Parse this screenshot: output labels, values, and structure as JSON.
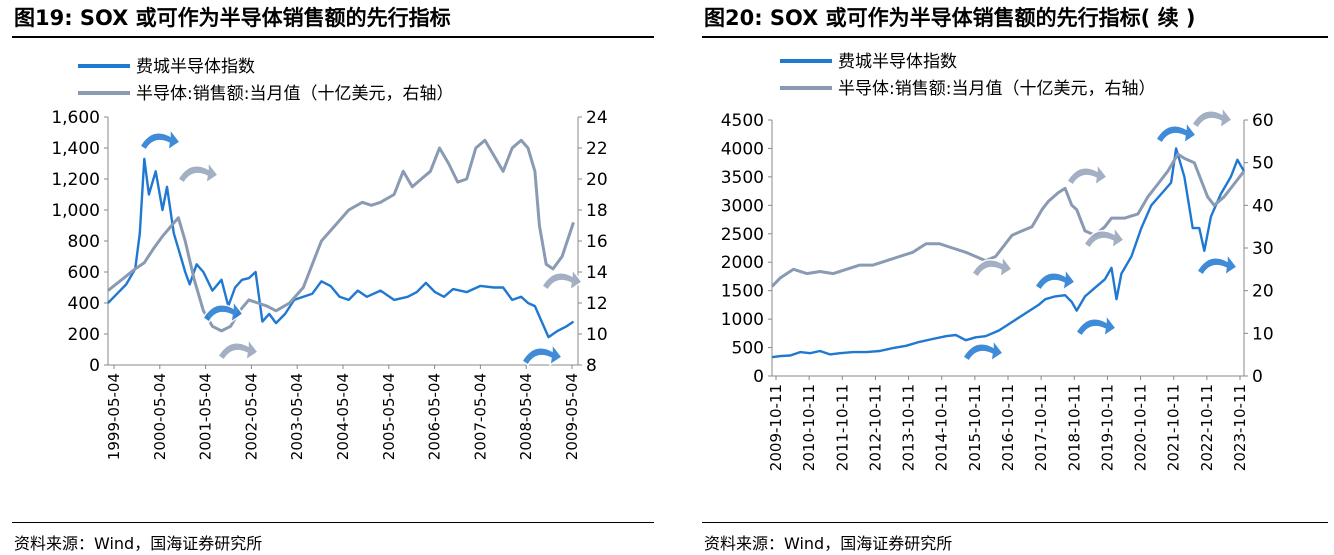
{
  "colors": {
    "sox": "#1f78d1",
    "sales": "#8a9ab3",
    "arrow_blue": "#2b7fd4",
    "arrow_grey": "#9aa7bd"
  },
  "panel1": {
    "title": "图19:  SOX 或可作为半导体销售额的先行指标",
    "source": "资料来源：Wind，国海证券研究所"
  },
  "panel2": {
    "title": "图20:  SOX 或可作为半导体销售额的先行指标( 续 )",
    "source": "资料来源：Wind，国海证券研究所"
  },
  "chart_data": [
    {
      "type": "line",
      "title": "图19:  SOX 或可作为半导体销售额的先行指标",
      "legend_position": "top-left",
      "grid": false,
      "x_tick_labels": [
        "1999-05-04",
        "2000-05-04",
        "2001-05-04",
        "2002-05-04",
        "2003-05-04",
        "2004-05-04",
        "2005-05-04",
        "2006-05-04",
        "2007-05-04",
        "2008-05-04",
        "2009-05-04"
      ],
      "x_range": [
        1999.3,
        2009.65
      ],
      "y_left": {
        "ticks": [
          "0",
          "200",
          "400",
          "600",
          "800",
          "1,000",
          "1,200",
          "1,400",
          "1,600"
        ],
        "range": [
          0,
          1600
        ]
      },
      "y_right": {
        "ticks": [
          "8",
          "10",
          "12",
          "14",
          "16",
          "18",
          "20",
          "22",
          "24"
        ],
        "range": [
          8,
          24
        ]
      },
      "series": [
        {
          "name": "费城半导体指数",
          "axis": "left",
          "x": [
            1999.3,
            1999.5,
            1999.7,
            1999.9,
            2000.0,
            2000.1,
            2000.2,
            2000.35,
            2000.5,
            2000.6,
            2000.75,
            2000.9,
            2001.0,
            2001.1,
            2001.25,
            2001.4,
            2001.6,
            2001.8,
            2001.95,
            2002.1,
            2002.25,
            2002.4,
            2002.55,
            2002.7,
            2002.85,
            2003.0,
            2003.2,
            2003.4,
            2003.6,
            2003.8,
            2004.0,
            2004.2,
            2004.4,
            2004.6,
            2004.8,
            2005.0,
            2005.3,
            2005.6,
            2005.9,
            2006.1,
            2006.3,
            2006.5,
            2006.7,
            2006.9,
            2007.2,
            2007.5,
            2007.8,
            2008.0,
            2008.2,
            2008.4,
            2008.55,
            2008.7,
            2008.85,
            2009.0,
            2009.2,
            2009.4,
            2009.55
          ],
          "values": [
            400,
            460,
            520,
            620,
            850,
            1330,
            1100,
            1250,
            1000,
            1150,
            850,
            700,
            600,
            520,
            650,
            600,
            480,
            550,
            380,
            500,
            550,
            560,
            600,
            280,
            330,
            270,
            330,
            420,
            440,
            460,
            540,
            510,
            440,
            420,
            480,
            440,
            480,
            420,
            440,
            470,
            530,
            470,
            440,
            490,
            470,
            510,
            500,
            500,
            420,
            440,
            400,
            380,
            280,
            180,
            220,
            250,
            280
          ]
        },
        {
          "name": "半导体:销售额:当月值（十亿美元，右轴）",
          "axis": "right",
          "x": [
            1999.3,
            1999.6,
            1999.9,
            2000.1,
            2000.3,
            2000.5,
            2000.7,
            2000.85,
            2001.0,
            2001.2,
            2001.4,
            2001.6,
            2001.8,
            2002.0,
            2002.2,
            2002.4,
            2002.6,
            2002.8,
            2003.0,
            2003.3,
            2003.6,
            2003.8,
            2004.0,
            2004.3,
            2004.6,
            2004.9,
            2005.1,
            2005.3,
            2005.6,
            2005.8,
            2006.0,
            2006.2,
            2006.4,
            2006.6,
            2006.8,
            2007.0,
            2007.2,
            2007.4,
            2007.6,
            2007.8,
            2008.0,
            2008.2,
            2008.4,
            2008.55,
            2008.7,
            2008.8,
            2008.95,
            2009.1,
            2009.3,
            2009.55
          ],
          "values": [
            12.8,
            13.5,
            14.2,
            14.6,
            15.5,
            16.3,
            17.0,
            17.5,
            16.0,
            13.5,
            11.5,
            10.5,
            10.2,
            10.5,
            11.5,
            12.2,
            12.0,
            11.8,
            11.5,
            12.0,
            13.0,
            14.5,
            16.0,
            17.0,
            18.0,
            18.5,
            18.3,
            18.5,
            19.0,
            20.5,
            19.5,
            20.0,
            20.5,
            22.0,
            21.0,
            19.8,
            20.0,
            22.0,
            22.5,
            21.5,
            20.5,
            22.0,
            22.5,
            22.0,
            20.5,
            17.0,
            14.5,
            14.2,
            15.0,
            17.2
          ]
        }
      ]
    },
    {
      "type": "line",
      "title": "图20:  SOX 或可作为半导体销售额的先行指标( 续 )",
      "legend_position": "top-left",
      "grid": false,
      "x_tick_labels": [
        "2009-10-11",
        "2010-10-11",
        "2011-10-11",
        "2012-10-11",
        "2013-10-11",
        "2014-10-11",
        "2015-10-11",
        "2016-10-11",
        "2017-10-11",
        "2018-10-11",
        "2019-10-11",
        "2020-10-11",
        "2021-10-11",
        "2022-10-11",
        "2023-10-11"
      ],
      "x_range": [
        2009.75,
        2024.0
      ],
      "y_left": {
        "ticks": [
          "0",
          "500",
          "1000",
          "1500",
          "2000",
          "2500",
          "3000",
          "3500",
          "4000",
          "4500"
        ],
        "range": [
          0,
          4500
        ]
      },
      "y_right": {
        "ticks": [
          "0",
          "10",
          "20",
          "30",
          "40",
          "50",
          "60"
        ],
        "range": [
          0,
          60
        ]
      },
      "series": [
        {
          "name": "费城半导体指数",
          "axis": "left",
          "x": [
            2009.75,
            2010.0,
            2010.3,
            2010.6,
            2010.9,
            2011.2,
            2011.5,
            2011.8,
            2012.2,
            2012.6,
            2013.0,
            2013.4,
            2013.8,
            2014.2,
            2014.6,
            2015.0,
            2015.3,
            2015.6,
            2015.9,
            2016.2,
            2016.6,
            2017.0,
            2017.4,
            2017.8,
            2018.0,
            2018.3,
            2018.6,
            2018.8,
            2018.95,
            2019.2,
            2019.5,
            2019.8,
            2020.0,
            2020.15,
            2020.3,
            2020.6,
            2020.9,
            2021.2,
            2021.5,
            2021.8,
            2021.95,
            2022.2,
            2022.45,
            2022.65,
            2022.8,
            2023.0,
            2023.3,
            2023.6,
            2023.8,
            2024.0
          ],
          "values": [
            330,
            350,
            360,
            420,
            400,
            440,
            380,
            400,
            420,
            420,
            440,
            490,
            530,
            600,
            650,
            700,
            720,
            630,
            680,
            700,
            800,
            950,
            1100,
            1250,
            1350,
            1400,
            1420,
            1300,
            1150,
            1400,
            1550,
            1700,
            1900,
            1350,
            1800,
            2100,
            2600,
            3000,
            3200,
            3400,
            4000,
            3500,
            2600,
            2600,
            2200,
            2800,
            3200,
            3500,
            3800,
            3600
          ]
        },
        {
          "name": "半导体:销售额:当月值（十亿美元，右轴）",
          "axis": "right",
          "x": [
            2009.75,
            2010.0,
            2010.4,
            2010.8,
            2011.2,
            2011.6,
            2012.0,
            2012.4,
            2012.8,
            2013.2,
            2013.6,
            2014.0,
            2014.4,
            2014.8,
            2015.2,
            2015.6,
            2015.9,
            2016.2,
            2016.5,
            2016.8,
            2017.0,
            2017.3,
            2017.6,
            2017.9,
            2018.1,
            2018.4,
            2018.6,
            2018.8,
            2018.95,
            2019.2,
            2019.5,
            2019.8,
            2020.0,
            2020.4,
            2020.8,
            2021.1,
            2021.4,
            2021.7,
            2022.0,
            2022.2,
            2022.5,
            2022.75,
            2022.9,
            2023.1,
            2023.4,
            2023.7,
            2024.0
          ],
          "values": [
            21,
            23,
            25,
            24,
            24.5,
            24,
            25,
            26,
            26,
            27,
            28,
            29,
            31,
            31,
            30,
            29,
            28,
            27,
            28,
            31,
            33,
            34,
            35,
            39,
            41,
            43,
            44,
            40,
            39,
            34,
            33,
            35,
            37,
            37,
            38,
            42,
            45,
            48,
            52,
            51,
            50,
            45,
            42,
            40,
            42,
            45,
            48
          ]
        }
      ]
    }
  ]
}
